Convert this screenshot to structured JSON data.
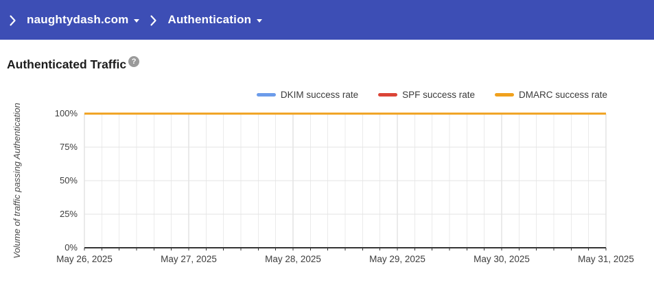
{
  "header": {
    "bg_color": "#3D4EB5",
    "breadcrumb": {
      "domain": "naughtydash.com",
      "section": "Authentication"
    }
  },
  "page": {
    "title": "Authenticated Traffic",
    "help_glyph": "?"
  },
  "chart_data": {
    "type": "line",
    "title": "Authenticated Traffic",
    "xlabel": "",
    "ylabel": "Volume of traffic passing Authentication",
    "ylim": [
      0,
      100
    ],
    "ytick_labels": [
      "0%",
      "25%",
      "50%",
      "75%",
      "100%"
    ],
    "x": [
      "May 26, 2025",
      "May 27, 2025",
      "May 28, 2025",
      "May 29, 2025",
      "May 30, 2025",
      "May 31, 2025"
    ],
    "minor_x_divisions_per_interval": 6,
    "grid": true,
    "legend_position": "top-right",
    "series": [
      {
        "name": "DKIM success rate",
        "color": "#6C9CEA",
        "values": [
          100,
          100,
          100,
          100,
          100,
          100
        ]
      },
      {
        "name": "SPF success rate",
        "color": "#DB4437",
        "values": [
          100,
          100,
          100,
          100,
          100,
          100
        ]
      },
      {
        "name": "DMARC success rate",
        "color": "#F0A11D",
        "values": [
          100,
          100,
          100,
          100,
          100,
          100
        ]
      }
    ],
    "styles": {
      "axis_color": "#333333",
      "major_grid_color": "#d6d6d6",
      "minor_grid_color": "#ebebeb",
      "h_grid_color": "#e3e3e3"
    }
  }
}
